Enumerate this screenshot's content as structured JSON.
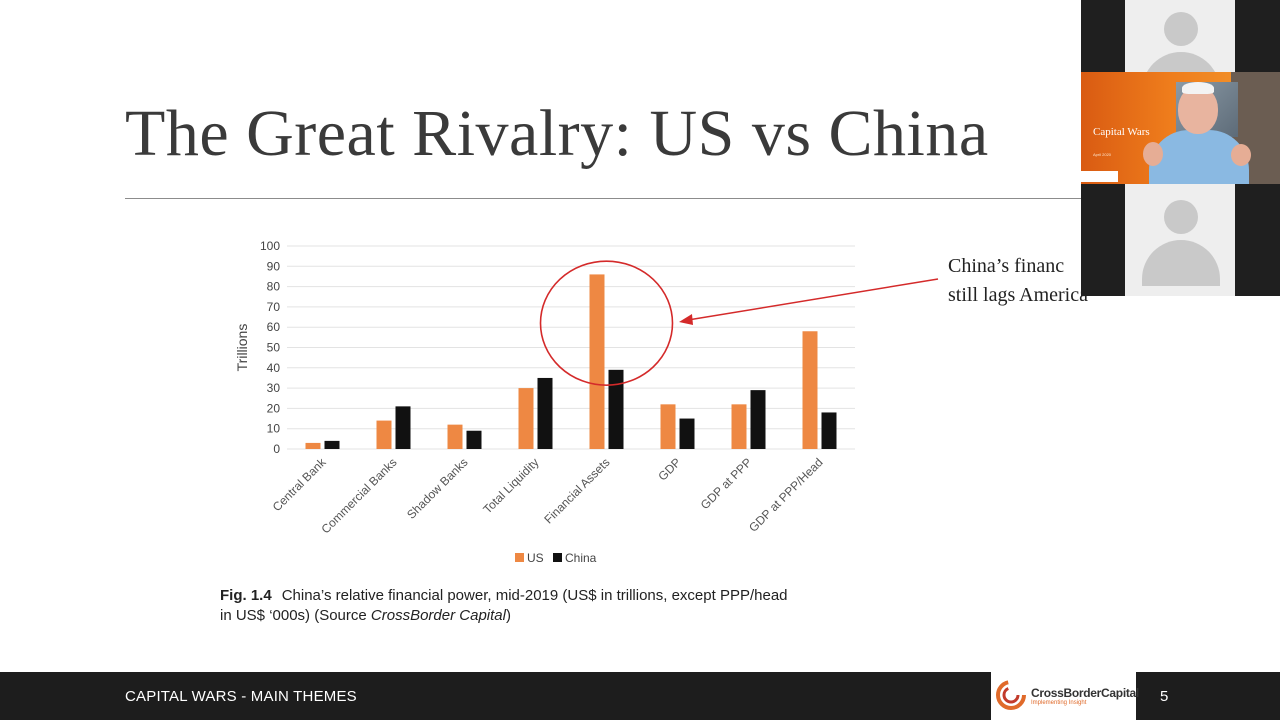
{
  "slide": {
    "title": "The Great Rivalry: US vs China",
    "annotation_line1": "China’s financ",
    "annotation_line2": "still lags America",
    "footer": "CAPITAL WARS - MAIN THEMES",
    "page_number": "5",
    "logo_name": "CrossBorderCapital",
    "logo_tagline": "Implementing Insight",
    "caption_label": "Fig. 1.4",
    "caption_line1": "China’s relative financial power, mid-2019 (US$ in trillions, except PPP/head",
    "caption_line2_pre": "in US$ ‘000s) (Source ",
    "caption_line2_italic": "CrossBorder Capital",
    "caption_line2_post": ")"
  },
  "video": {
    "speaker_title": "Capital Wars",
    "speaker_subtitle": "April 2020"
  },
  "chart_data": {
    "type": "bar",
    "categories": [
      "Central Bank",
      "Commercial Banks",
      "Shadow Banks",
      "Total Liquidity",
      "Financial Assets",
      "GDP",
      "GDP at PPP",
      "GDP at PPP/Head"
    ],
    "series": [
      {
        "name": "US",
        "color": "#ee8843",
        "values": [
          3,
          14,
          12,
          30,
          86,
          22,
          22,
          58
        ]
      },
      {
        "name": "China",
        "color": "#111111",
        "values": [
          4,
          21,
          9,
          35,
          39,
          15,
          29,
          18
        ]
      }
    ],
    "ylabel": "Trillions",
    "ylim": [
      0,
      100
    ],
    "yticks": [
      0,
      10,
      20,
      30,
      40,
      50,
      60,
      70,
      80,
      90,
      100
    ],
    "grid": true,
    "legend": "bottom",
    "highlight": {
      "category": "Financial Assets",
      "color": "#d42a2a"
    }
  }
}
